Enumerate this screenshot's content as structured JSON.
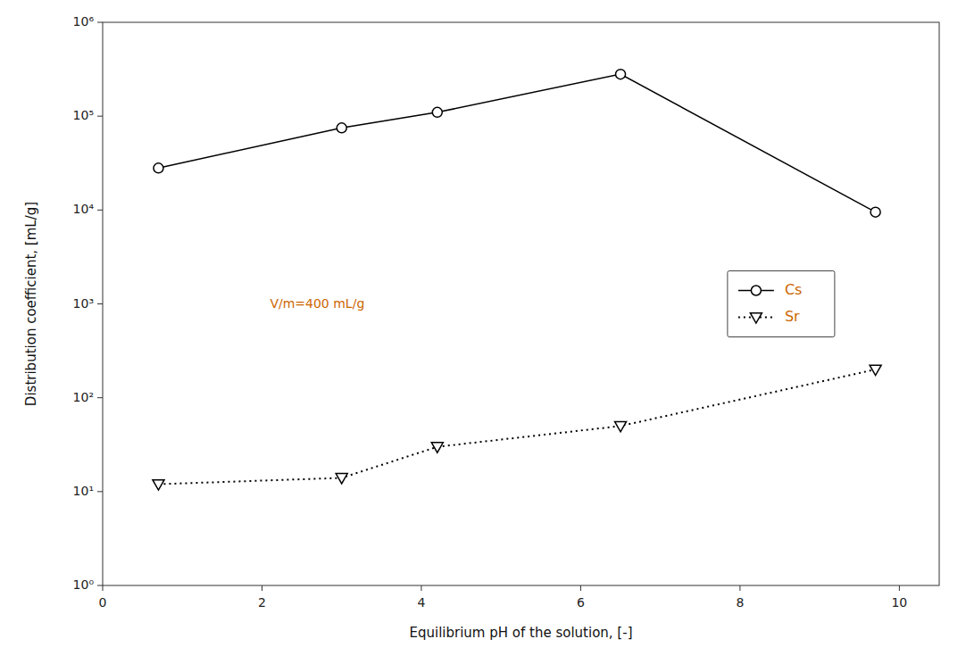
{
  "chart_data": {
    "type": "line",
    "xlabel": "Equilibrium pH of the solution, [-]",
    "ylabel": "Distribution coefficient, [mL/g]",
    "annotations": [
      {
        "text": "V/m=400 mL/g",
        "color": "#cc6600"
      }
    ],
    "x": [
      0.7,
      3.0,
      4.2,
      6.5,
      9.7
    ],
    "series": [
      {
        "name": "Cs",
        "color": "#000000",
        "marker": "circle",
        "line_style": "solid",
        "values": [
          28000,
          75000,
          110000,
          280000,
          9500
        ]
      },
      {
        "name": "Sr",
        "color": "#000000",
        "marker": "triangle-down",
        "line_style": "dotted",
        "values": [
          12,
          14,
          30,
          50,
          200
        ]
      }
    ],
    "xlim": [
      0,
      10.5
    ],
    "ylim": [
      1,
      1000000
    ],
    "xticks": [
      0,
      2,
      4,
      6,
      8,
      10
    ],
    "yticks": [
      {
        "value": 1,
        "label": "10⁰"
      },
      {
        "value": 10,
        "label": "10¹"
      },
      {
        "value": 100,
        "label": "10²"
      },
      {
        "value": 1000,
        "label": "10³"
      },
      {
        "value": 10000,
        "label": "10⁴"
      },
      {
        "value": 100000,
        "label": "10⁵"
      },
      {
        "value": 1000000,
        "label": "10⁶"
      }
    ],
    "log": "y",
    "grid": false,
    "legend": "right"
  }
}
